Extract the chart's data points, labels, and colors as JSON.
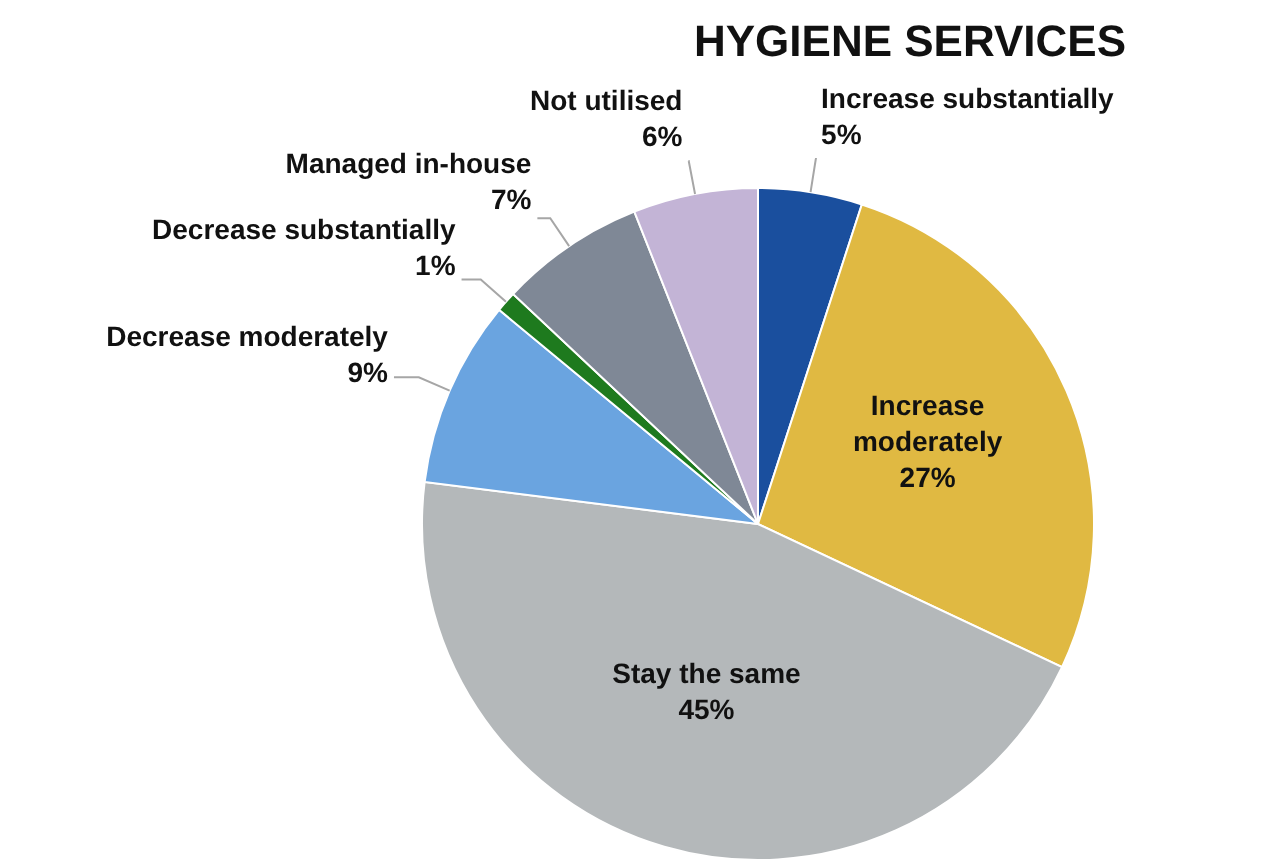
{
  "chart_data": {
    "type": "pie",
    "title": "HYGIENE SERVICES",
    "categories": [
      "Increase substantially",
      "Increase moderately",
      "Stay the same",
      "Decrease moderately",
      "Decrease substantially",
      "Managed in-house",
      "Not utilised"
    ],
    "values": [
      5,
      27,
      45,
      9,
      1,
      7,
      6
    ],
    "value_labels": [
      "5%",
      "27%",
      "45%",
      "9%",
      "1%",
      "7%",
      "6%"
    ],
    "colors": [
      "#1a4f9e",
      "#e0b942",
      "#b4b8ba",
      "#6aa4e0",
      "#1e7a1e",
      "#7f8896",
      "#c3b4d6"
    ]
  }
}
